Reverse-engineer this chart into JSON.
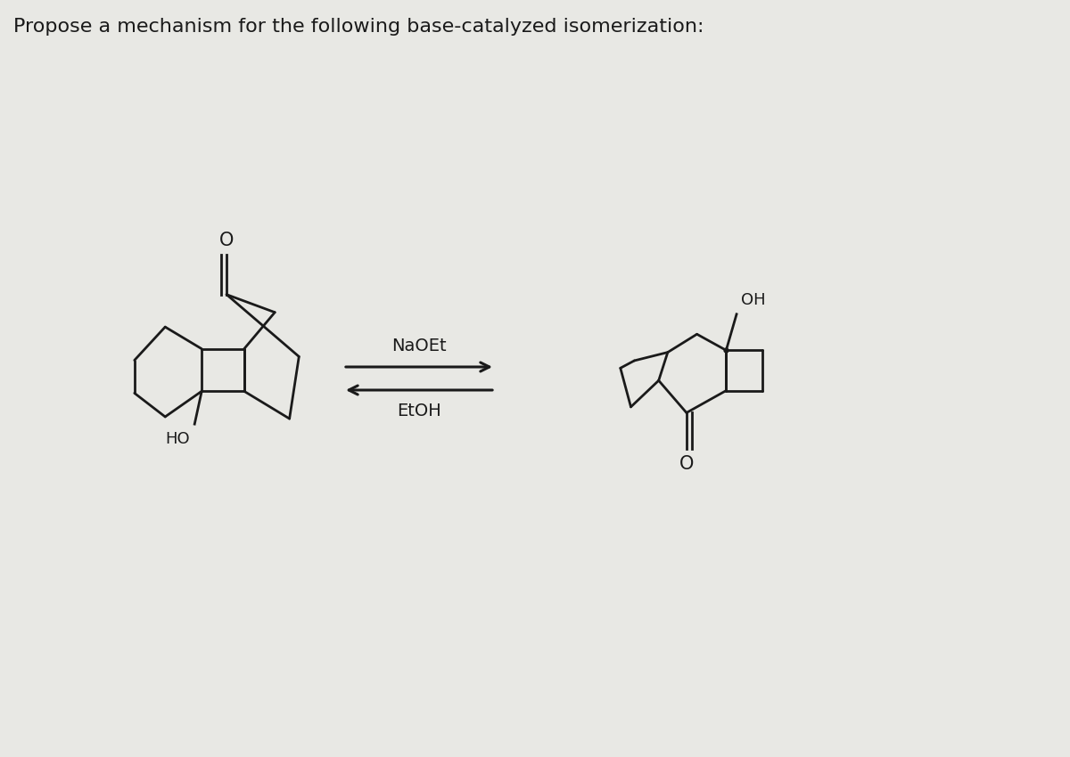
{
  "title": "Propose a mechanism for the following base-catalyzed isomerization:",
  "title_fontsize": 16,
  "background_color": "#e8e8e4",
  "reagent_above": "NaOEt",
  "reagent_below": "EtOH",
  "line_color": "#1a1a1a",
  "text_color": "#1a1a1a",
  "lw": 2.0
}
